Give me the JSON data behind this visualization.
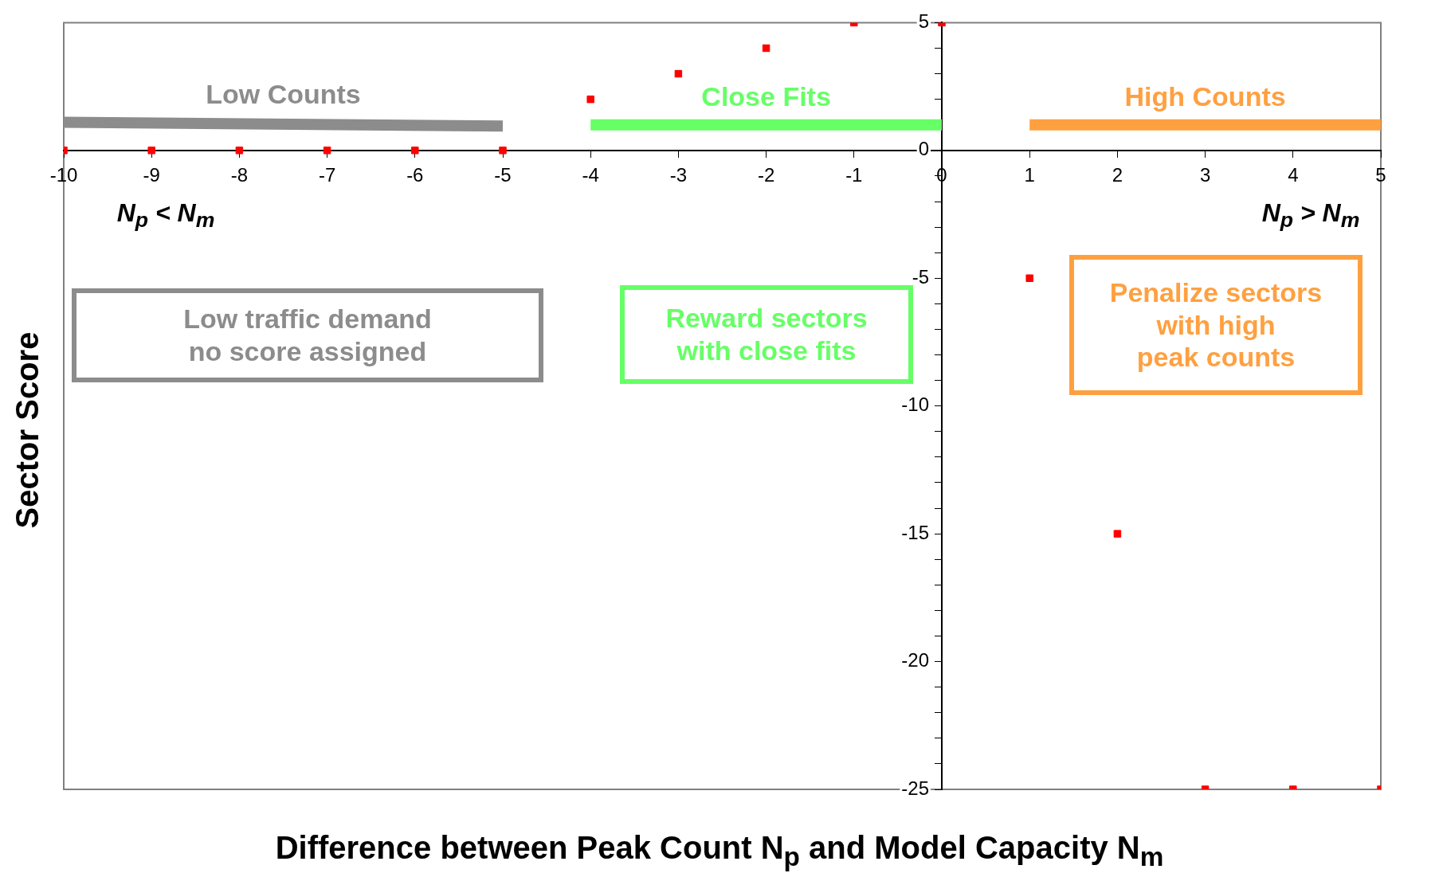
{
  "chart_data": {
    "type": "scatter",
    "xlabel": "Difference between Peak Count N$_{p}$ and Model Capacity N$_{m}$",
    "ylabel": "Sector Score",
    "series": [
      {
        "type": "scatter",
        "color": "#ff0000",
        "x": [
          -10,
          -9,
          -8,
          -7,
          -6,
          -5,
          -4,
          -3,
          -2,
          -1,
          0,
          1,
          2,
          3,
          4,
          5
        ],
        "values": [
          0,
          0,
          0,
          0,
          0,
          0,
          2,
          3,
          4,
          5,
          5,
          -5,
          -15,
          -25,
          -25,
          -25
        ],
        "marker": "square"
      },
      {
        "type": "line",
        "name": "Low Counts",
        "color": "#8c8c8c",
        "x": [
          -10,
          -5
        ],
        "values": [
          1.1,
          0.95
        ],
        "marker": "none"
      },
      {
        "type": "line",
        "name": "Close Fits",
        "color": "#66ff66",
        "x": [
          -4,
          0
        ],
        "values": [
          1,
          1
        ],
        "marker": "none"
      },
      {
        "type": "line",
        "name": "High Counts",
        "color": "#ffa040",
        "x": [
          1,
          5
        ],
        "values": [
          1,
          1
        ],
        "marker": "none"
      }
    ],
    "grid": false,
    "legend": false,
    "xlim": [
      -10,
      5
    ],
    "xticks": [
      -10,
      -9,
      -8,
      -7,
      -6,
      -5,
      -4,
      -3,
      -2,
      -1,
      0,
      1,
      2,
      3,
      4,
      5
    ],
    "ylim": [
      -25,
      5
    ],
    "yticks": [
      -25,
      {
        "value": -24,
        "label": null
      },
      {
        "value": -23,
        "label": null
      },
      {
        "value": -22,
        "label": null
      },
      {
        "value": -21,
        "label": null
      },
      -20,
      {
        "value": -19,
        "label": null
      },
      {
        "value": -18,
        "label": null
      },
      {
        "value": -17,
        "label": null
      },
      {
        "value": -16,
        "label": null
      },
      -15,
      {
        "value": -14,
        "label": null
      },
      {
        "value": -13,
        "label": null
      },
      {
        "value": -12,
        "label": null
      },
      {
        "value": -11,
        "label": null
      },
      -10,
      {
        "value": -9,
        "label": null
      },
      {
        "value": -8,
        "label": null
      },
      {
        "value": -7,
        "label": null
      },
      {
        "value": -6,
        "label": null
      },
      -5,
      {
        "value": -4,
        "label": null
      },
      {
        "value": -3,
        "label": null
      },
      {
        "value": -2,
        "label": null
      },
      {
        "value": -1,
        "label": null
      },
      0,
      {
        "value": 1,
        "label": null
      },
      {
        "value": 2,
        "label": null
      },
      {
        "value": 3,
        "label": null
      },
      {
        "value": 4,
        "label": null
      },
      5
    ],
    "annotations": [
      "N$_{p}$ < N$_{m}$",
      "N$_{p}$ > N$_{m}$",
      "Low traffic demand\nno score assigned",
      "Reward sectors\nwith close fits",
      "Penalize sectors\nwith high\npeak counts"
    ]
  }
}
